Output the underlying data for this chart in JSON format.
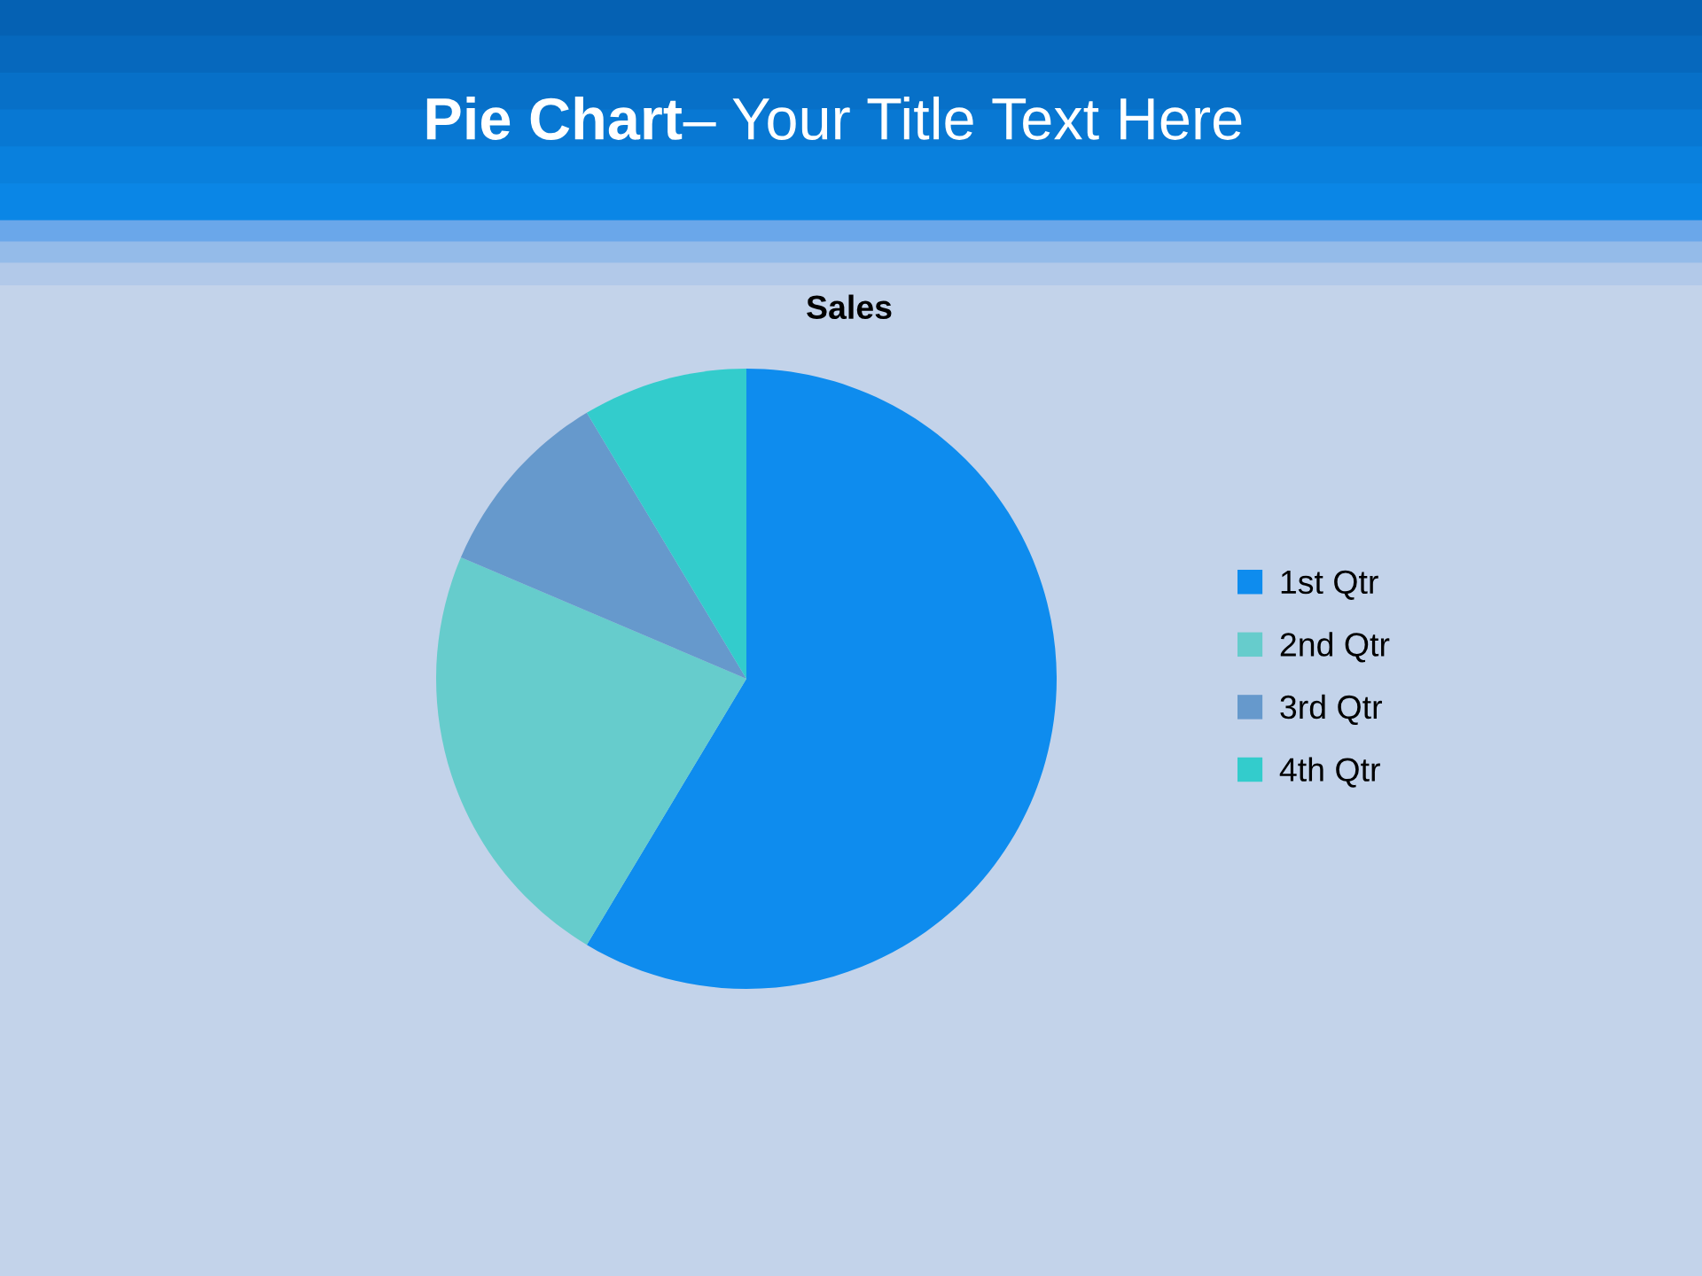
{
  "chart_data": {
    "type": "pie",
    "title": "Pie Chart– Your Title Text Here",
    "subtitle": "Sales",
    "categories": [
      "1st Qtr",
      "2nd Qtr",
      "3rd Qtr",
      "4th Qtr"
    ],
    "values": [
      58.6,
      22.8,
      10.0,
      8.6
    ],
    "colors": [
      "#0e8cee",
      "#66cccc",
      "#6699cc",
      "#33cccc"
    ],
    "legend": "right"
  }
}
